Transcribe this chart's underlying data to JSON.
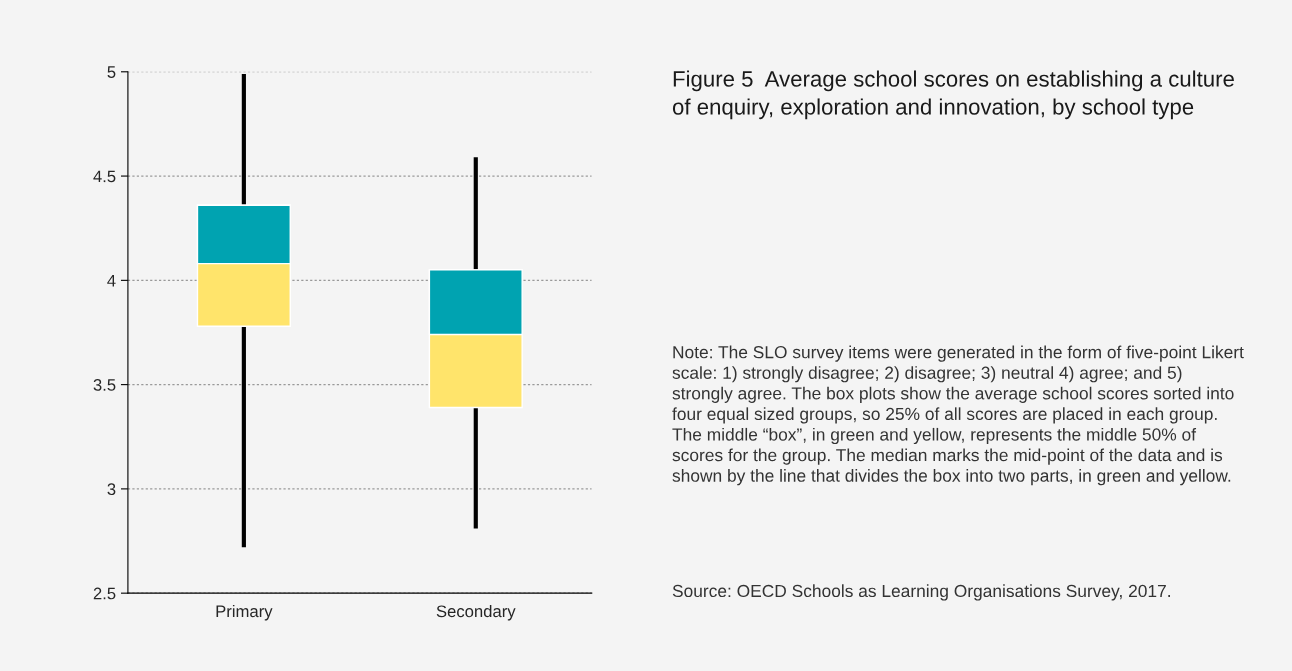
{
  "chart_data": {
    "type": "box",
    "title": "Figure 5  Average school scores on establishing a culture of enquiry, exploration and innovation, by school type",
    "categories": [
      "Primary",
      "Secondary"
    ],
    "boxes": [
      {
        "low": 2.72,
        "q1": 3.78,
        "median": 4.08,
        "q3": 4.36,
        "high": 4.99
      },
      {
        "low": 2.81,
        "q1": 3.39,
        "median": 3.74,
        "q3": 4.05,
        "high": 4.59
      }
    ],
    "colors": [
      "#ffe46b",
      "#ffe46b"
    ],
    "color": "#00a3b1",
    "ylim": [
      2.5,
      5
    ],
    "yticks": [
      2.5,
      3,
      3.5,
      4,
      4.5,
      5
    ],
    "grid": "y",
    "annotations": [
      "Note: The SLO survey items were generated in the form of five-point Likert scale: 1) strongly disagree; 2) disagree; 3) neutral 4) agree; and 5) strongly agree. The box plots show the average school scores sorted into four equal sized groups, so 25% of all scores are placed in each group. The middle “box”, in green and yellow, represents the middle 50% of scores for the group. The median marks the mid-point of the data and is shown by the line that divides the box into two parts, in green and yellow.",
      "Source: OECD Schools as Learning Organisations Survey, 2017."
    ]
  }
}
